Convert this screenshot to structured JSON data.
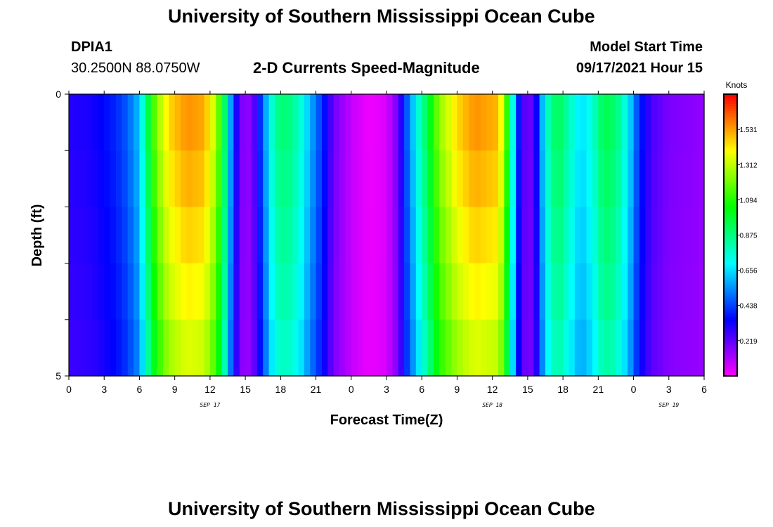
{
  "page": {
    "header_title": "University of Southern Mississippi Ocean Cube",
    "station_id": "DPIA1",
    "station_coords": "30.2500N  88.0750W",
    "subtitle": "2-D Currents Speed-Magnitude",
    "model_label": "Model Start Time",
    "model_time": "09/17/2021 Hour 15",
    "footer_title": "University of Southern Mississippi Ocean Cube"
  },
  "chart_data": {
    "type": "heatmap",
    "title": "2-D Currents Speed-Magnitude",
    "xlabel": "Forecast Time(Z)",
    "ylabel": "Depth (ft)",
    "x_range": [
      0,
      54
    ],
    "x_unit": "hours from 2021-09-17 00Z",
    "x_ticks": [
      0,
      3,
      6,
      9,
      12,
      15,
      18,
      21,
      24,
      27,
      30,
      33,
      36,
      39,
      42,
      45,
      48,
      51,
      54
    ],
    "x_tick_labels": [
      "0",
      "3",
      "6",
      "9",
      "12",
      "15",
      "18",
      "21",
      "0",
      "3",
      "6",
      "9",
      "12",
      "15",
      "18",
      "21",
      "0",
      "3",
      "6"
    ],
    "date_labels": [
      {
        "x": 12,
        "text": "SEP 17"
      },
      {
        "x": 36,
        "text": "SEP 18"
      },
      {
        "x": 51,
        "text": "SEP 19"
      }
    ],
    "y_range": [
      0,
      5
    ],
    "y_ticks": [
      0,
      1,
      2,
      3,
      4,
      5
    ],
    "y_tick_labels": [
      "0",
      "",
      "",
      "",
      "",
      "5"
    ],
    "depth_levels": [
      0,
      1,
      2,
      3,
      4
    ],
    "colorbar": {
      "title": "Knots",
      "range": [
        0,
        1.75
      ],
      "ticks": [
        0.219,
        0.438,
        0.656,
        0.875,
        1.094,
        1.312,
        1.531
      ],
      "tick_labels": [
        "0.219",
        "0.438",
        "0.656",
        "0.875",
        "1.094",
        "1.312",
        "1.531"
      ]
    },
    "speed_profile_by_hour": [
      [
        0,
        0.3
      ],
      [
        2,
        0.32
      ],
      [
        4,
        0.4
      ],
      [
        5,
        0.48
      ],
      [
        6,
        0.62
      ],
      [
        6.7,
        0.95
      ],
      [
        7.5,
        1.25
      ],
      [
        8.5,
        1.45
      ],
      [
        10,
        1.55
      ],
      [
        11.5,
        1.52
      ],
      [
        12.5,
        1.3
      ],
      [
        13.2,
        0.95
      ],
      [
        14.0,
        0.4
      ],
      [
        14.6,
        0.18
      ],
      [
        15.5,
        0.15
      ],
      [
        16.5,
        0.5
      ],
      [
        17.5,
        0.85
      ],
      [
        18.5,
        0.9
      ],
      [
        19.5,
        0.8
      ],
      [
        20.5,
        0.6
      ],
      [
        21.5,
        0.42
      ],
      [
        22.5,
        0.2
      ],
      [
        24,
        0.08
      ],
      [
        25.5,
        0.02
      ],
      [
        27,
        0.05
      ],
      [
        28,
        0.2
      ],
      [
        28.5,
        0.4
      ],
      [
        29.5,
        0.7
      ],
      [
        30.5,
        0.95
      ],
      [
        31.5,
        1.25
      ],
      [
        33,
        1.45
      ],
      [
        34.5,
        1.55
      ],
      [
        36.5,
        1.5
      ],
      [
        37,
        1.3
      ],
      [
        37.6,
        0.85
      ],
      [
        38.2,
        0.4
      ],
      [
        39,
        0.15
      ],
      [
        39.8,
        0.35
      ],
      [
        40.5,
        0.75
      ],
      [
        41.5,
        0.95
      ],
      [
        42.5,
        0.8
      ],
      [
        43.5,
        0.65
      ],
      [
        44.5,
        0.75
      ],
      [
        45.5,
        0.95
      ],
      [
        46.5,
        0.9
      ],
      [
        47.5,
        0.7
      ],
      [
        48.5,
        0.4
      ],
      [
        49.5,
        0.25
      ],
      [
        51,
        0.18
      ],
      [
        54,
        0.15
      ]
    ],
    "depth_damping": [
      1.0,
      0.96,
      0.91,
      0.86,
      0.8
    ]
  }
}
